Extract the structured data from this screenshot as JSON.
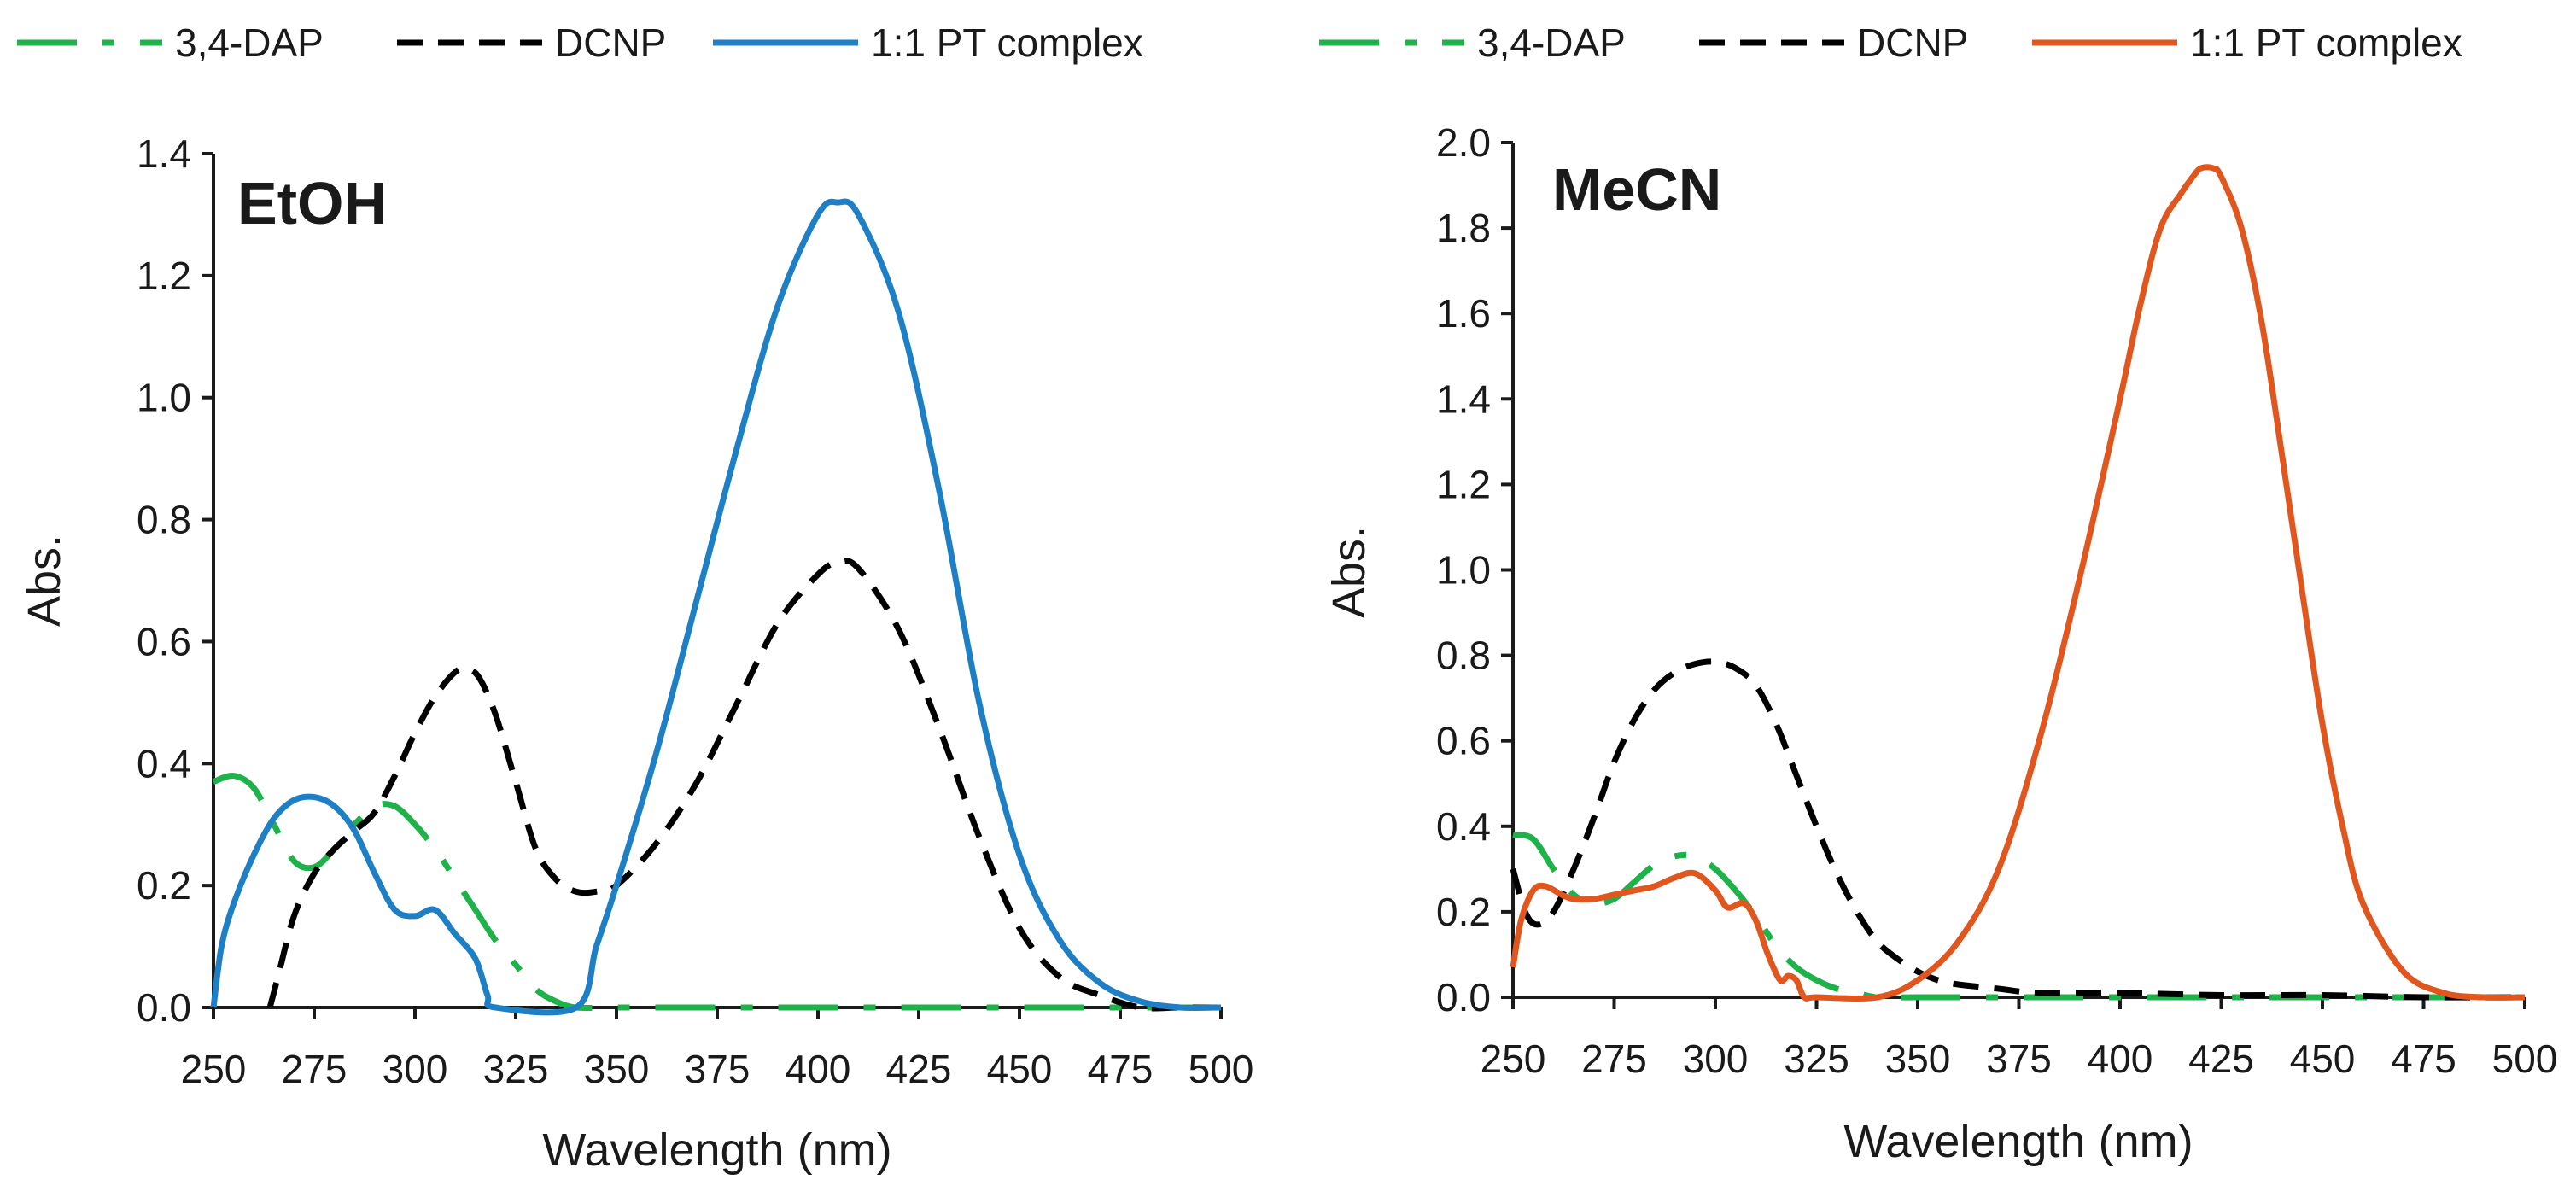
{
  "chart_data": [
    {
      "type": "line",
      "solvent_label": "EtOH",
      "xlabel": "Wavelength (nm)",
      "ylabel": "Abs.",
      "xlim": [
        250,
        500
      ],
      "ylim": [
        0,
        1.4
      ],
      "x_ticks": [
        "250",
        "275",
        "300",
        "325",
        "350",
        "375",
        "400",
        "425",
        "450",
        "475",
        "500"
      ],
      "y_ticks": [
        "0.0",
        "0.2",
        "0.4",
        "0.6",
        "0.8",
        "1.0",
        "1.2",
        "1.4"
      ],
      "grid": false,
      "legend_position": "top",
      "series": [
        {
          "name": "3,4-DAP",
          "color": "#1fb24a",
          "dash": "dash-dot",
          "x": [
            250,
            255,
            260,
            265,
            270,
            275,
            280,
            285,
            290,
            295,
            300,
            305,
            310,
            315,
            320,
            325,
            330,
            335,
            340,
            350,
            360,
            380,
            400,
            425,
            450,
            475,
            500
          ],
          "y": [
            0.37,
            0.38,
            0.36,
            0.3,
            0.24,
            0.23,
            0.26,
            0.3,
            0.33,
            0.33,
            0.3,
            0.26,
            0.21,
            0.16,
            0.11,
            0.07,
            0.03,
            0.01,
            0.0,
            0.0,
            0.0,
            0.0,
            0.0,
            0.0,
            0.0,
            0.0,
            0.0
          ]
        },
        {
          "name": "DCNP",
          "color": "#000000",
          "dash": "dashed",
          "x": [
            264,
            266,
            270,
            275,
            280,
            285,
            290,
            295,
            300,
            305,
            310,
            313,
            316,
            320,
            325,
            330,
            335,
            340,
            345,
            350,
            360,
            370,
            380,
            390,
            400,
            405,
            410,
            420,
            430,
            440,
            450,
            460,
            470,
            480,
            490,
            500
          ],
          "y": [
            0.0,
            0.05,
            0.15,
            0.22,
            0.26,
            0.29,
            0.32,
            0.38,
            0.45,
            0.51,
            0.55,
            0.555,
            0.54,
            0.48,
            0.37,
            0.26,
            0.21,
            0.19,
            0.19,
            0.2,
            0.27,
            0.37,
            0.5,
            0.63,
            0.71,
            0.73,
            0.72,
            0.62,
            0.46,
            0.28,
            0.13,
            0.05,
            0.02,
            0.0,
            0.0,
            0.0
          ]
        },
        {
          "name": "1:1 PT complex",
          "color": "#1e7fc4",
          "dash": "solid",
          "x": [
            250,
            252,
            255,
            260,
            265,
            270,
            275,
            280,
            285,
            290,
            295,
            300,
            305,
            310,
            315,
            318,
            320,
            340,
            345,
            350,
            360,
            370,
            380,
            390,
            400,
            405,
            410,
            420,
            430,
            440,
            450,
            460,
            470,
            480,
            490,
            500
          ],
          "y": [
            0.0,
            0.1,
            0.17,
            0.25,
            0.31,
            0.34,
            0.345,
            0.33,
            0.29,
            0.22,
            0.16,
            0.15,
            0.16,
            0.12,
            0.08,
            0.02,
            0.0,
            0.0,
            0.1,
            0.2,
            0.42,
            0.67,
            0.92,
            1.15,
            1.3,
            1.32,
            1.3,
            1.14,
            0.85,
            0.5,
            0.25,
            0.11,
            0.04,
            0.01,
            0.0,
            0.0
          ]
        }
      ]
    },
    {
      "type": "line",
      "solvent_label": "MeCN",
      "xlabel": "Wavelength (nm)",
      "ylabel": "Abs.",
      "xlim": [
        250,
        500
      ],
      "ylim": [
        0,
        2.0
      ],
      "x_ticks": [
        "250",
        "275",
        "300",
        "325",
        "350",
        "375",
        "400",
        "425",
        "450",
        "475",
        "500"
      ],
      "y_ticks": [
        "0.0",
        "0.2",
        "0.4",
        "0.6",
        "0.8",
        "1.0",
        "1.2",
        "1.4",
        "1.6",
        "1.8",
        "2.0"
      ],
      "grid": false,
      "legend_position": "top",
      "series": [
        {
          "name": "3,4-DAP",
          "color": "#1fb24a",
          "dash": "dash-dot",
          "x": [
            250,
            255,
            260,
            265,
            270,
            275,
            280,
            285,
            290,
            295,
            300,
            305,
            310,
            315,
            320,
            325,
            330,
            335,
            340,
            350,
            360,
            380,
            400,
            425,
            450,
            475,
            500
          ],
          "y": [
            0.38,
            0.37,
            0.3,
            0.24,
            0.22,
            0.23,
            0.27,
            0.31,
            0.33,
            0.33,
            0.3,
            0.25,
            0.19,
            0.12,
            0.07,
            0.04,
            0.02,
            0.01,
            0.0,
            0.0,
            0.0,
            0.0,
            0.0,
            0.0,
            0.0,
            0.0,
            0.0
          ]
        },
        {
          "name": "DCNP",
          "color": "#000000",
          "dash": "dashed",
          "x": [
            250,
            253,
            256,
            260,
            265,
            270,
            275,
            280,
            285,
            290,
            295,
            300,
            305,
            310,
            315,
            320,
            325,
            330,
            335,
            340,
            345,
            350,
            355,
            360,
            370,
            380,
            400,
            425,
            450,
            475,
            500
          ],
          "y": [
            0.3,
            0.2,
            0.17,
            0.2,
            0.3,
            0.42,
            0.55,
            0.65,
            0.72,
            0.76,
            0.78,
            0.785,
            0.77,
            0.73,
            0.64,
            0.52,
            0.4,
            0.29,
            0.2,
            0.13,
            0.09,
            0.06,
            0.04,
            0.03,
            0.02,
            0.01,
            0.01,
            0.005,
            0.005,
            0.0,
            0.0
          ]
        },
        {
          "name": "1:1 PT complex",
          "color": "#e0561f",
          "dash": "solid",
          "x": [
            250,
            252,
            255,
            258,
            262,
            265,
            270,
            275,
            280,
            285,
            290,
            295,
            300,
            303,
            307,
            310,
            313,
            316,
            318,
            320,
            322,
            325,
            340,
            350,
            360,
            370,
            380,
            390,
            400,
            405,
            410,
            415,
            418,
            420,
            423,
            425,
            430,
            435,
            440,
            445,
            450,
            455,
            460,
            470,
            480,
            490,
            500
          ],
          "y": [
            0.07,
            0.18,
            0.25,
            0.26,
            0.24,
            0.23,
            0.23,
            0.24,
            0.25,
            0.26,
            0.28,
            0.29,
            0.25,
            0.21,
            0.22,
            0.18,
            0.1,
            0.04,
            0.05,
            0.04,
            0.0,
            0.0,
            0.0,
            0.04,
            0.13,
            0.3,
            0.6,
            0.98,
            1.4,
            1.62,
            1.8,
            1.88,
            1.92,
            1.94,
            1.94,
            1.92,
            1.8,
            1.58,
            1.27,
            0.95,
            0.64,
            0.4,
            0.22,
            0.06,
            0.01,
            0.0,
            0.0
          ]
        }
      ]
    }
  ]
}
